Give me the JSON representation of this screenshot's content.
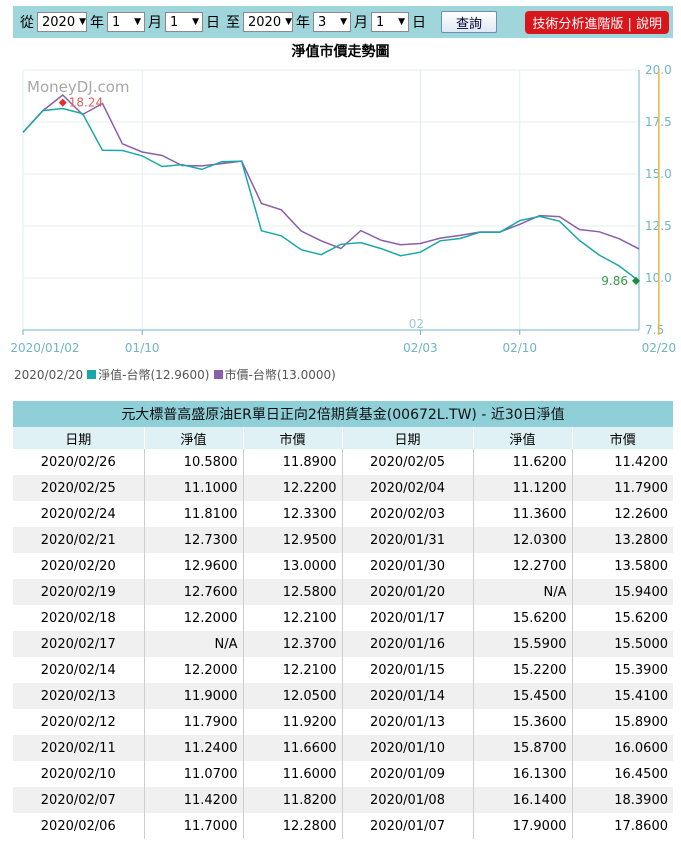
{
  "filter": {
    "from_label": "從",
    "year_label": "年",
    "month_label": "月",
    "day_label": "日",
    "to_label": "至",
    "from_year": "2020",
    "from_month": "1",
    "from_day": "1",
    "to_year": "2020",
    "to_month": "3",
    "to_day": "1",
    "query_label": "查詢",
    "advanced_label": "技術分析進階版 | 說明"
  },
  "colors": {
    "nav": "#1aa7a7",
    "price": "#8b5ea8",
    "marker": "#e8b93a",
    "axis": "#6fb4c8"
  },
  "chart_data": {
    "type": "line",
    "title": "淨值市價走勢圖",
    "watermark": "MoneyDJ.com",
    "x_tick_labels": [
      "2020/01/02",
      "01/10",
      "02/03",
      "02/10",
      "02/20"
    ],
    "x_tick_positions": [
      0,
      6,
      20,
      25,
      32
    ],
    "x_sub_label": "02",
    "y_tick_labels": [
      "20.0",
      "17.5",
      "15.0",
      "12.5",
      "10.0",
      "7.5"
    ],
    "ylim": [
      7.5,
      20.0
    ],
    "marker_index": 32,
    "max_label": "18.24",
    "min_label": "9.86",
    "series": [
      {
        "name": "淨值-台幣",
        "values": [
          17.0,
          18.05,
          18.15,
          17.9,
          16.14,
          16.13,
          15.87,
          15.36,
          15.45,
          15.22,
          15.59,
          15.62,
          12.27,
          12.03,
          11.36,
          11.12,
          11.62,
          11.7,
          11.42,
          11.07,
          11.24,
          11.79,
          11.9,
          12.2,
          12.2,
          12.76,
          12.96,
          12.73,
          11.81,
          11.1,
          10.58,
          9.86
        ]
      },
      {
        "name": "市價-台幣",
        "values": [
          17.0,
          18.05,
          18.8,
          17.86,
          18.39,
          16.45,
          16.06,
          15.89,
          15.41,
          15.39,
          15.5,
          15.62,
          13.58,
          13.28,
          12.26,
          11.79,
          11.42,
          12.28,
          11.82,
          11.6,
          11.66,
          11.92,
          12.05,
          12.21,
          12.21,
          12.58,
          13.0,
          12.95,
          12.33,
          12.22,
          11.89,
          11.4
        ]
      }
    ]
  },
  "legend": {
    "date": "2020/02/20",
    "nav_label": "淨值-台幣(12.9600)",
    "price_label": "市價-台幣(13.0000)"
  },
  "table": {
    "title": "元大標普高盛原油ER單日正向2倍期貨基金(00672L.TW) - 近30日淨值",
    "headers": [
      "日期",
      "淨值",
      "市價",
      "日期",
      "淨值",
      "市價"
    ],
    "rows": [
      [
        "2020/02/26",
        "10.5800",
        "11.8900",
        "2020/02/05",
        "11.6200",
        "11.4200"
      ],
      [
        "2020/02/25",
        "11.1000",
        "12.2200",
        "2020/02/04",
        "11.1200",
        "11.7900"
      ],
      [
        "2020/02/24",
        "11.8100",
        "12.3300",
        "2020/02/03",
        "11.3600",
        "12.2600"
      ],
      [
        "2020/02/21",
        "12.7300",
        "12.9500",
        "2020/01/31",
        "12.0300",
        "13.2800"
      ],
      [
        "2020/02/20",
        "12.9600",
        "13.0000",
        "2020/01/30",
        "12.2700",
        "13.5800"
      ],
      [
        "2020/02/19",
        "12.7600",
        "12.5800",
        "2020/01/20",
        "N/A",
        "15.9400"
      ],
      [
        "2020/02/18",
        "12.2000",
        "12.2100",
        "2020/01/17",
        "15.6200",
        "15.6200"
      ],
      [
        "2020/02/17",
        "N/A",
        "12.3700",
        "2020/01/16",
        "15.5900",
        "15.5000"
      ],
      [
        "2020/02/14",
        "12.2000",
        "12.2100",
        "2020/01/15",
        "15.2200",
        "15.3900"
      ],
      [
        "2020/02/13",
        "11.9000",
        "12.0500",
        "2020/01/14",
        "15.4500",
        "15.4100"
      ],
      [
        "2020/02/12",
        "11.7900",
        "11.9200",
        "2020/01/13",
        "15.3600",
        "15.8900"
      ],
      [
        "2020/02/11",
        "11.2400",
        "11.6600",
        "2020/01/10",
        "15.8700",
        "16.0600"
      ],
      [
        "2020/02/10",
        "11.0700",
        "11.6000",
        "2020/01/09",
        "16.1300",
        "16.4500"
      ],
      [
        "2020/02/07",
        "11.4200",
        "11.8200",
        "2020/01/08",
        "16.1400",
        "18.3900"
      ],
      [
        "2020/02/06",
        "11.7000",
        "12.2800",
        "2020/01/07",
        "17.9000",
        "17.8600"
      ]
    ]
  }
}
